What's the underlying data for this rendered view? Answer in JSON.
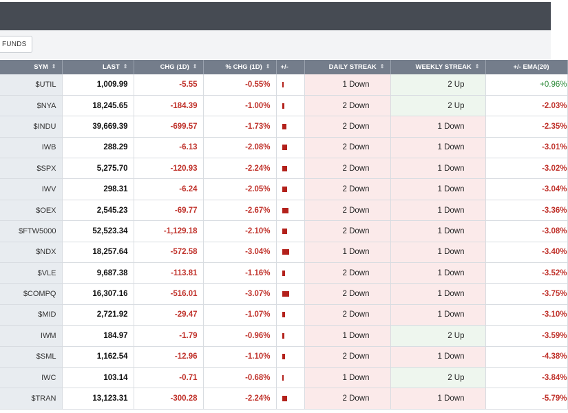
{
  "toolbar": {
    "funds_label": "FUNDS"
  },
  "columns": {
    "sym": "SYM",
    "last": "LAST",
    "chg": "CHG (1D)",
    "pct_chg": "% CHG (1D)",
    "plus_minus": "+/-",
    "daily_streak": "DAILY STREAK",
    "weekly_streak": "WEEKLY STREAK",
    "ema": "+/- EMA(20)"
  },
  "colors": {
    "negative": "#c0322b",
    "positive": "#2e8b3b",
    "header_bg": "#747d8b",
    "down_bg": "#fbeaea",
    "up_bg": "#eef6ee",
    "bar": "#b3211b"
  },
  "rows": [
    {
      "sym": "$UTIL",
      "last": "1,009.99",
      "chg": "-5.55",
      "pct": "-0.55%",
      "pct_value": -0.55,
      "daily": "1 Down",
      "daily_dir": "down",
      "weekly": "2 Up",
      "weekly_dir": "up",
      "ema": "+0.96%",
      "ema_dir": "up"
    },
    {
      "sym": "$NYA",
      "last": "18,245.65",
      "chg": "-184.39",
      "pct": "-1.00%",
      "pct_value": -1.0,
      "daily": "2 Down",
      "daily_dir": "down",
      "weekly": "2 Up",
      "weekly_dir": "up",
      "ema": "-2.03%",
      "ema_dir": "down"
    },
    {
      "sym": "$INDU",
      "last": "39,669.39",
      "chg": "-699.57",
      "pct": "-1.73%",
      "pct_value": -1.73,
      "daily": "2 Down",
      "daily_dir": "down",
      "weekly": "1 Down",
      "weekly_dir": "down",
      "ema": "-2.35%",
      "ema_dir": "down"
    },
    {
      "sym": "IWB",
      "last": "288.29",
      "chg": "-6.13",
      "pct": "-2.08%",
      "pct_value": -2.08,
      "daily": "2 Down",
      "daily_dir": "down",
      "weekly": "1 Down",
      "weekly_dir": "down",
      "ema": "-3.01%",
      "ema_dir": "down"
    },
    {
      "sym": "$SPX",
      "last": "5,275.70",
      "chg": "-120.93",
      "pct": "-2.24%",
      "pct_value": -2.24,
      "daily": "2 Down",
      "daily_dir": "down",
      "weekly": "1 Down",
      "weekly_dir": "down",
      "ema": "-3.02%",
      "ema_dir": "down"
    },
    {
      "sym": "IWV",
      "last": "298.31",
      "chg": "-6.24",
      "pct": "-2.05%",
      "pct_value": -2.05,
      "daily": "2 Down",
      "daily_dir": "down",
      "weekly": "1 Down",
      "weekly_dir": "down",
      "ema": "-3.04%",
      "ema_dir": "down"
    },
    {
      "sym": "$OEX",
      "last": "2,545.23",
      "chg": "-69.77",
      "pct": "-2.67%",
      "pct_value": -2.67,
      "daily": "2 Down",
      "daily_dir": "down",
      "weekly": "1 Down",
      "weekly_dir": "down",
      "ema": "-3.36%",
      "ema_dir": "down"
    },
    {
      "sym": "$FTW5000",
      "last": "52,523.34",
      "chg": "-1,129.18",
      "pct": "-2.10%",
      "pct_value": -2.1,
      "daily": "2 Down",
      "daily_dir": "down",
      "weekly": "1 Down",
      "weekly_dir": "down",
      "ema": "-3.08%",
      "ema_dir": "down"
    },
    {
      "sym": "$NDX",
      "last": "18,257.64",
      "chg": "-572.58",
      "pct": "-3.04%",
      "pct_value": -3.04,
      "daily": "1 Down",
      "daily_dir": "down",
      "weekly": "1 Down",
      "weekly_dir": "down",
      "ema": "-3.40%",
      "ema_dir": "down"
    },
    {
      "sym": "$VLE",
      "last": "9,687.38",
      "chg": "-113.81",
      "pct": "-1.16%",
      "pct_value": -1.16,
      "daily": "2 Down",
      "daily_dir": "down",
      "weekly": "1 Down",
      "weekly_dir": "down",
      "ema": "-3.52%",
      "ema_dir": "down"
    },
    {
      "sym": "$COMPQ",
      "last": "16,307.16",
      "chg": "-516.01",
      "pct": "-3.07%",
      "pct_value": -3.07,
      "daily": "2 Down",
      "daily_dir": "down",
      "weekly": "1 Down",
      "weekly_dir": "down",
      "ema": "-3.75%",
      "ema_dir": "down"
    },
    {
      "sym": "$MID",
      "last": "2,721.92",
      "chg": "-29.47",
      "pct": "-1.07%",
      "pct_value": -1.07,
      "daily": "2 Down",
      "daily_dir": "down",
      "weekly": "1 Down",
      "weekly_dir": "down",
      "ema": "-3.10%",
      "ema_dir": "down"
    },
    {
      "sym": "IWM",
      "last": "184.97",
      "chg": "-1.79",
      "pct": "-0.96%",
      "pct_value": -0.96,
      "daily": "1 Down",
      "daily_dir": "down",
      "weekly": "2 Up",
      "weekly_dir": "up",
      "ema": "-3.59%",
      "ema_dir": "down"
    },
    {
      "sym": "$SML",
      "last": "1,162.54",
      "chg": "-12.96",
      "pct": "-1.10%",
      "pct_value": -1.1,
      "daily": "2 Down",
      "daily_dir": "down",
      "weekly": "1 Down",
      "weekly_dir": "down",
      "ema": "-4.38%",
      "ema_dir": "down"
    },
    {
      "sym": "IWC",
      "last": "103.14",
      "chg": "-0.71",
      "pct": "-0.68%",
      "pct_value": -0.68,
      "daily": "1 Down",
      "daily_dir": "down",
      "weekly": "2 Up",
      "weekly_dir": "up",
      "ema": "-3.84%",
      "ema_dir": "down"
    },
    {
      "sym": "$TRAN",
      "last": "13,123.31",
      "chg": "-300.28",
      "pct": "-2.24%",
      "pct_value": -2.24,
      "daily": "2 Down",
      "daily_dir": "down",
      "weekly": "1 Down",
      "weekly_dir": "down",
      "ema": "-5.79%",
      "ema_dir": "down"
    }
  ]
}
